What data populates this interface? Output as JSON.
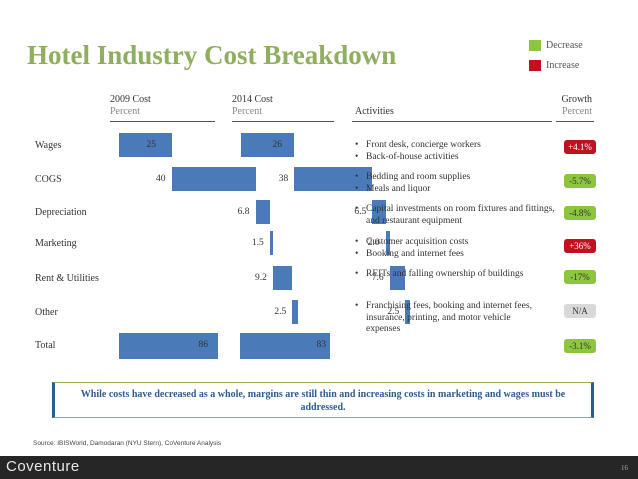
{
  "title": "Hotel Industry Cost Breakdown",
  "legend": {
    "decrease": {
      "label": "Decrease",
      "color": "#8cc63f"
    },
    "increase": {
      "label": "Increase",
      "color": "#c0111f"
    }
  },
  "columns": {
    "c2009": {
      "title": "2009 Cost",
      "sub": "Percent"
    },
    "c2014": {
      "title": "2014 Cost",
      "sub": "Percent"
    },
    "activities": {
      "title": "Activities"
    },
    "growth": {
      "title": "Growth",
      "sub": "Percent"
    }
  },
  "rows": [
    {
      "label": "Wages",
      "v2009": "25",
      "v2014": "26",
      "activities": [
        "Front desk, concierge workers",
        "Back-of-house activities"
      ],
      "growth": "+4.1%",
      "trend": "increase"
    },
    {
      "label": "COGS",
      "v2009": "40",
      "v2014": "38",
      "activities": [
        "Bedding and room supplies",
        "Meals and liquor"
      ],
      "growth": "-5.7%",
      "trend": "decrease"
    },
    {
      "label": "Depreciation",
      "v2009": "6.8",
      "v2014": "6.5",
      "activities": [
        "Capital investments on room fixtures and fittings, and restaurant equipment"
      ],
      "growth": "-4.8%",
      "trend": "decrease"
    },
    {
      "label": "Marketing",
      "v2009": "1.5",
      "v2014": "2.0",
      "activities": [
        "Customer acquisition costs",
        "Booking and internet fees"
      ],
      "growth": "+36%",
      "trend": "increase"
    },
    {
      "label": "Rent & Utilities",
      "v2009": "9.2",
      "v2014": "7.6",
      "activities": [
        "REITs and falling ownership of buildings"
      ],
      "growth": "-17%",
      "trend": "decrease"
    },
    {
      "label": "Other",
      "v2009": "2.5",
      "v2014": "2.5",
      "activities": [
        "Franchising fees, booking and internet fees, insurance, printing, and motor vehicle expenses"
      ],
      "growth": "N/A",
      "trend": "neutral"
    },
    {
      "label": "Total",
      "v2009": "86",
      "v2014": "83",
      "activities": [],
      "growth": "-3.1%",
      "trend": "decrease"
    }
  ],
  "callout": "While costs have decreased as a whole, margins are still thin and increasing costs in marketing and wages must be addressed.",
  "source": "Source: IBISWorld, Damodaran (NYU Stern), CoVenture Analysis",
  "footer": {
    "logo": "Coventure",
    "page": "16"
  }
}
